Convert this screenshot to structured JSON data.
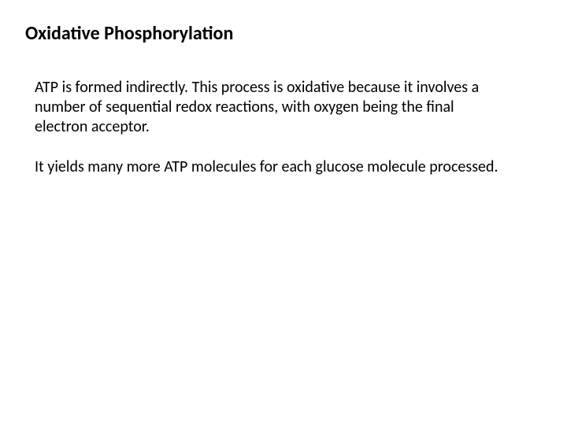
{
  "slide": {
    "title": "Oxidative Phosphorylation",
    "paragraphs": [
      "ATP is formed indirectly. This process is oxidative because it involves a number of sequential redox reactions, with oxygen being the final electron acceptor.",
      "It yields many more ATP molecules for each glucose molecule processed."
    ],
    "colors": {
      "background": "#ffffff",
      "text": "#000000"
    },
    "typography": {
      "title_fontsize": 24,
      "title_fontweight": "bold",
      "body_fontsize": 20,
      "font_family": "Calibri, 'Segoe UI', Arial, sans-serif"
    }
  }
}
